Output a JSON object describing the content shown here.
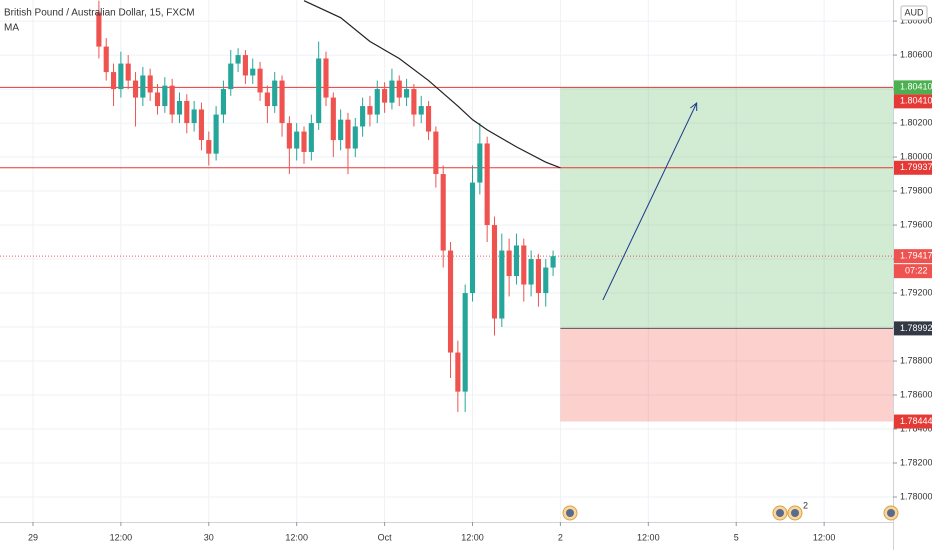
{
  "chart_data": {
    "type": "candlestick",
    "title": "British Pound / Australian Dollar, 15, FXCM",
    "indicator_label": "MA",
    "currency": "AUD",
    "countdown": "07:22",
    "event_badge": "2",
    "up_color": "#26a69a",
    "down_color": "#ef5350",
    "grid": true,
    "xlim": [
      -4.5,
      117.4
    ],
    "ylim": [
      1.77853,
      1.80924
    ],
    "xticks": [
      {
        "value": 0,
        "label": "29"
      },
      {
        "value": 12,
        "label": "12:00"
      },
      {
        "value": 24,
        "label": "30"
      },
      {
        "value": 36,
        "label": "12:00"
      },
      {
        "value": 48,
        "label": "Oct"
      },
      {
        "value": 60,
        "label": "12:00"
      },
      {
        "value": 72,
        "label": "2"
      },
      {
        "value": 84,
        "label": "12:00"
      },
      {
        "value": 96,
        "label": "5"
      },
      {
        "value": 108,
        "label": "12:00"
      }
    ],
    "yticks": [
      {
        "value": 1.808,
        "label": "1.80800"
      },
      {
        "value": 1.806,
        "label": "1.80600"
      },
      {
        "value": 1.804,
        "label": "1.80400"
      },
      {
        "value": 1.802,
        "label": "1.80200"
      },
      {
        "value": 1.8,
        "label": "1.80000"
      },
      {
        "value": 1.798,
        "label": "1.79800"
      },
      {
        "value": 1.796,
        "label": "1.79600"
      },
      {
        "value": 1.794,
        "label": "1.79400"
      },
      {
        "value": 1.792,
        "label": "1.79200"
      },
      {
        "value": 1.79,
        "label": "1.79000"
      },
      {
        "value": 1.788,
        "label": "1.78800"
      },
      {
        "value": 1.786,
        "label": "1.78600"
      },
      {
        "value": 1.784,
        "label": "1.78400"
      },
      {
        "value": 1.782,
        "label": "1.78200"
      },
      {
        "value": 1.78,
        "label": "1.78000"
      }
    ],
    "x": [
      9,
      10,
      11,
      12,
      13,
      14,
      15,
      16,
      17,
      18,
      19,
      20,
      21,
      22,
      23,
      24,
      25,
      26,
      27,
      28,
      29,
      30,
      31,
      32,
      33,
      34,
      35,
      36,
      37,
      38,
      39,
      40,
      41,
      42,
      43,
      44,
      45,
      46,
      47,
      48,
      49,
      50,
      51,
      52,
      53,
      54,
      55,
      56,
      57,
      58,
      59,
      60,
      61,
      62,
      63,
      64,
      65,
      66,
      67,
      68,
      69,
      70,
      71
    ],
    "open": [
      1.8085,
      1.8065,
      1.805,
      1.804,
      1.8055,
      1.8045,
      1.8035,
      1.8048,
      1.8038,
      1.803,
      1.8042,
      1.8025,
      1.8033,
      1.802,
      1.8028,
      1.801,
      1.8002,
      1.8025,
      1.804,
      1.8055,
      1.806,
      1.8048,
      1.8052,
      1.8038,
      1.803,
      1.8045,
      1.802,
      1.8005,
      1.8015,
      1.8003,
      1.802,
      1.8058,
      1.8035,
      1.801,
      1.8022,
      1.8005,
      1.8018,
      1.803,
      1.8025,
      1.804,
      1.8032,
      1.8045,
      1.8035,
      1.804,
      1.8025,
      1.803,
      1.8015,
      1.799,
      1.7945,
      1.7885,
      1.7862,
      1.792,
      1.7985,
      1.8008,
      1.796,
      1.7905,
      1.7945,
      1.793,
      1.7948,
      1.7925,
      1.794,
      1.792,
      1.7935
    ],
    "high": [
      1.8092,
      1.807,
      1.8055,
      1.8062,
      1.806,
      1.805,
      1.8053,
      1.8052,
      1.8043,
      1.8047,
      1.8046,
      1.8038,
      1.8037,
      1.8033,
      1.8032,
      1.8015,
      1.803,
      1.8045,
      1.8063,
      1.8064,
      1.8063,
      1.8058,
      1.8056,
      1.8042,
      1.805,
      1.8048,
      1.8024,
      1.802,
      1.8018,
      1.8025,
      1.8068,
      1.8062,
      1.8038,
      1.8028,
      1.8026,
      1.8023,
      1.8035,
      1.8036,
      1.8045,
      1.8044,
      1.8052,
      1.8048,
      1.8046,
      1.8043,
      1.8036,
      1.8033,
      1.8018,
      1.7995,
      1.795,
      1.7892,
      1.7925,
      1.7995,
      1.802,
      1.8012,
      1.7965,
      1.7955,
      1.7952,
      1.7955,
      1.7952,
      1.7945,
      1.7943,
      1.794,
      1.7945
    ],
    "low": [
      1.8058,
      1.8045,
      1.803,
      1.8035,
      1.804,
      1.8018,
      1.803,
      1.8033,
      1.8025,
      1.8026,
      1.802,
      1.802,
      1.8014,
      1.8015,
      1.8004,
      1.7995,
      1.7998,
      1.802,
      1.8036,
      1.805,
      1.8043,
      1.8043,
      1.8033,
      1.802,
      1.8026,
      1.8012,
      1.799,
      1.7998,
      1.7996,
      1.7998,
      1.8016,
      1.803,
      1.8,
      1.8004,
      1.799,
      1.8,
      1.8012,
      1.8018,
      1.802,
      1.8026,
      1.8028,
      1.803,
      1.803,
      1.8018,
      1.802,
      1.801,
      1.7982,
      1.7935,
      1.787,
      1.785,
      1.785,
      1.7915,
      1.7978,
      1.795,
      1.7895,
      1.79,
      1.7918,
      1.7925,
      1.7915,
      1.7918,
      1.7912,
      1.7912,
      1.793
    ],
    "close": [
      1.8065,
      1.805,
      1.804,
      1.8055,
      1.8045,
      1.8035,
      1.8048,
      1.8038,
      1.803,
      1.8042,
      1.8025,
      1.8033,
      1.802,
      1.8028,
      1.801,
      1.8002,
      1.8025,
      1.804,
      1.8055,
      1.806,
      1.8048,
      1.8052,
      1.8038,
      1.803,
      1.8045,
      1.802,
      1.8005,
      1.8015,
      1.8003,
      1.802,
      1.8058,
      1.8035,
      1.801,
      1.8022,
      1.8005,
      1.8018,
      1.803,
      1.8025,
      1.804,
      1.8032,
      1.8045,
      1.8035,
      1.804,
      1.8025,
      1.803,
      1.8015,
      1.799,
      1.7945,
      1.7885,
      1.7862,
      1.792,
      1.7985,
      1.8008,
      1.796,
      1.7905,
      1.7945,
      1.793,
      1.7948,
      1.7925,
      1.794,
      1.792,
      1.7935,
      1.79417
    ],
    "ma": {
      "color": "#222222",
      "x": [
        37,
        42,
        46,
        50,
        54,
        58,
        60,
        62,
        66,
        70,
        72
      ],
      "values": [
        1.8092,
        1.8082,
        1.8068,
        1.8058,
        1.8045,
        1.803,
        1.8022,
        1.8016,
        1.8006,
        1.7997,
        1.79937
      ]
    },
    "levels": [
      {
        "value": 1.8041,
        "label": "1.80410",
        "color": "#e53935"
      },
      {
        "value": 1.79937,
        "label": "1.79937",
        "color": "#e53935"
      }
    ],
    "last_price": {
      "value": 1.79417,
      "label": "1.79417",
      "color": "#ef5350"
    },
    "position": {
      "x_start": 72,
      "x_end": 117.4,
      "entry": {
        "value": 1.78992,
        "label": "1.78992"
      },
      "target": {
        "value": 1.8041,
        "label": "1.80410"
      },
      "stop": {
        "value": 1.78444,
        "label": "1.78444"
      }
    },
    "arrow": {
      "x": [
        77.8,
        90.6
      ],
      "y": [
        1.79159,
        1.80318
      ],
      "color": "#1e3a8a"
    }
  }
}
